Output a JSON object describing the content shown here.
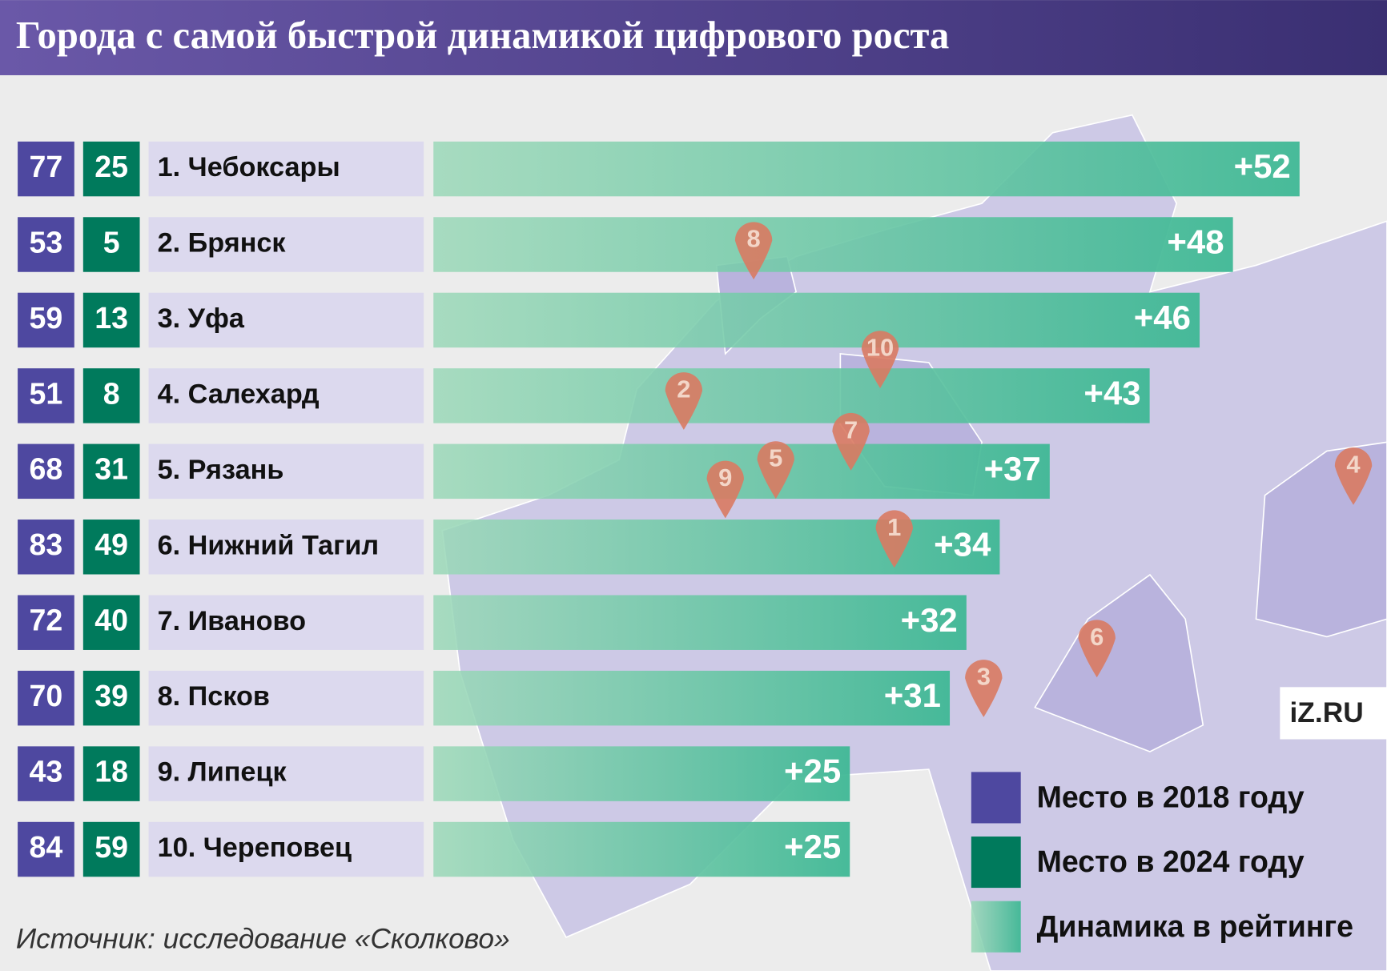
{
  "chart_data": {
    "type": "bar",
    "orientation": "horizontal",
    "title": "Города с самой быстрой динамикой цифрового роста",
    "source": "Источник: исследование «Сколково»",
    "logo": "iZ.RU",
    "categories": [
      "1. Чебоксары",
      "2. Брянск",
      "3. Уфа",
      "4. Салехард",
      "5. Рязань",
      "6. Нижний Тагил",
      "7. Иваново",
      "8. Псков",
      "9. Липецк",
      "10. Череповец"
    ],
    "series": [
      {
        "name": "Место в 2018 году",
        "color": "#4e48a0",
        "values": [
          77,
          53,
          59,
          51,
          68,
          83,
          72,
          70,
          43,
          84
        ]
      },
      {
        "name": "Место в 2024 году",
        "color": "#007a5c",
        "values": [
          25,
          5,
          13,
          8,
          31,
          49,
          40,
          39,
          18,
          59
        ]
      },
      {
        "name": "Динамика в рейтинге",
        "color": "#3fb895",
        "values": [
          52,
          48,
          46,
          43,
          37,
          34,
          32,
          31,
          25,
          25
        ],
        "value_labels": [
          "+52",
          "+48",
          "+46",
          "+43",
          "+37",
          "+34",
          "+32",
          "+31",
          "+25",
          "+25"
        ]
      }
    ],
    "map_pins": [
      "8",
      "10",
      "2",
      "7",
      "5",
      "9",
      "1",
      "4",
      "6",
      "3"
    ]
  }
}
